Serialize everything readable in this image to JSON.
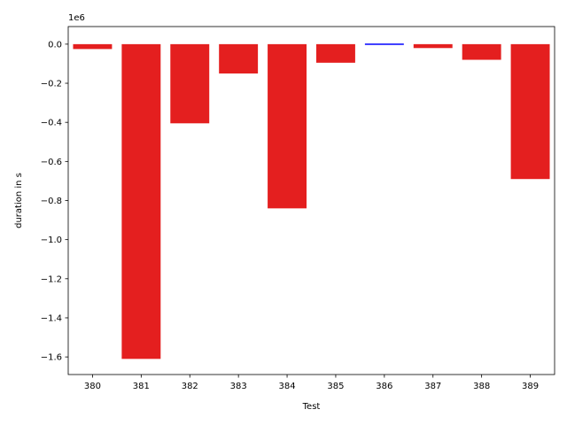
{
  "chart_data": {
    "type": "bar",
    "xlabel": "Test",
    "ylabel": "duration in s",
    "offset_label": "1e6",
    "categories": [
      "380",
      "381",
      "382",
      "383",
      "384",
      "385",
      "386",
      "387",
      "388",
      "389"
    ],
    "values": [
      -25000,
      -1610000,
      -405000,
      -150000,
      -840000,
      -95000,
      3000,
      -20000,
      -80000,
      -690000
    ],
    "bar_colors": [
      "#e41f1f",
      "#e41f1f",
      "#e41f1f",
      "#e41f1f",
      "#e41f1f",
      "#e41f1f",
      "#0000ff",
      "#e41f1f",
      "#e41f1f",
      "#e41f1f"
    ],
    "ylim": [
      -1690000,
      90000
    ],
    "yticks": [
      0,
      -200000,
      -400000,
      -600000,
      -800000,
      -1000000,
      -1200000,
      -1400000,
      -1600000
    ],
    "ytick_labels": [
      "0.0",
      "−0.2",
      "−0.4",
      "−0.6",
      "−0.8",
      "−1.0",
      "−1.2",
      "−1.4",
      "−1.6"
    ],
    "grid": false,
    "legend": "none"
  }
}
